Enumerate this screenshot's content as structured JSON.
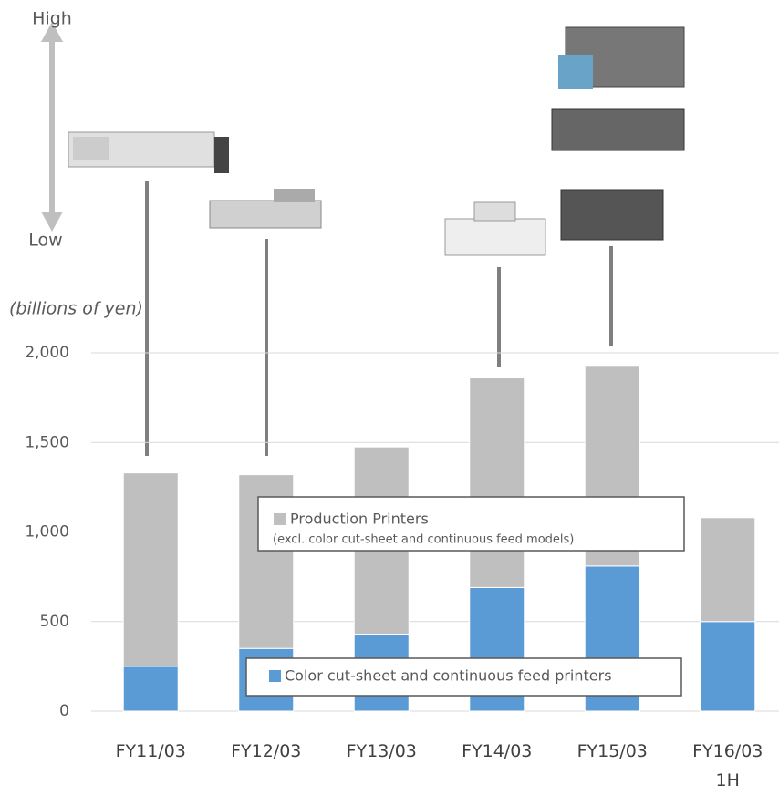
{
  "chart_data": {
    "type": "stacked_bar",
    "high_label": "High",
    "low_label": "Low",
    "unit_label": "(billions of yen)",
    "categories": [
      "FY11/03",
      "FY12/03",
      "FY13/03",
      "FY14/03",
      "FY15/03",
      "FY16/03\n1H"
    ],
    "series": [
      {
        "name": "Color cut-sheet and continuous feed printers",
        "color": "#5b9bd5",
        "values": [
          250,
          350,
          430,
          690,
          810,
          500
        ]
      },
      {
        "name": "Production Printers",
        "note": "(excl. color cut-sheet and continuous feed models)",
        "color": "#bfbfbf",
        "values": [
          1080,
          970,
          1045,
          1170,
          1120,
          580
        ]
      }
    ],
    "ylim": [
      0,
      2000
    ],
    "yticks": [
      0,
      500,
      {
        "value": 1000,
        "label": "1,000"
      },
      {
        "value": 1500,
        "label": "1,500"
      },
      {
        "value": 2000,
        "label": "2,000"
      }
    ],
    "grid": true
  }
}
